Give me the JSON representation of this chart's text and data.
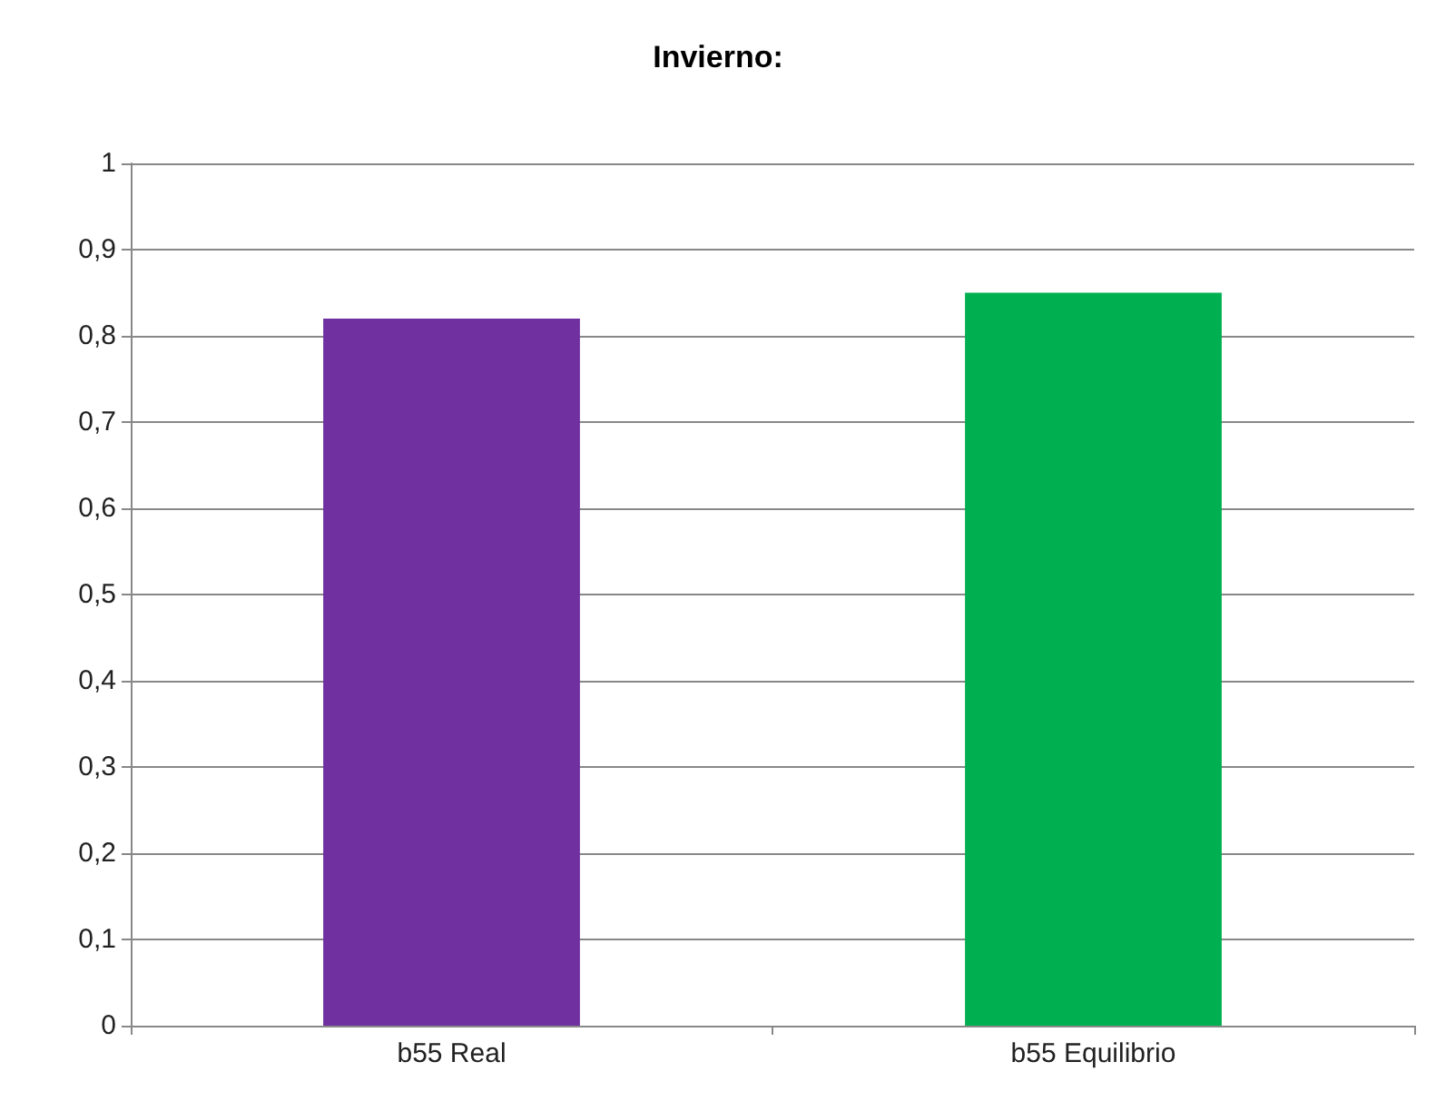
{
  "chart_data": {
    "type": "bar",
    "title": "Invierno:",
    "categories": [
      "b55 Real",
      "b55 Equilibrio"
    ],
    "values": [
      0.82,
      0.85
    ],
    "colors": [
      "#7030a0",
      "#00b050"
    ],
    "ylim": [
      0,
      1
    ],
    "yticks": [
      0,
      {
        "value": 0.1,
        "label": "0,1"
      },
      {
        "value": 0.2,
        "label": "0,2"
      },
      {
        "value": 0.3,
        "label": "0,3"
      },
      {
        "value": 0.4,
        "label": "0,4"
      },
      {
        "value": 0.5,
        "label": "0,5"
      },
      {
        "value": 0.6,
        "label": "0,6"
      },
      {
        "value": 0.7,
        "label": "0,7"
      },
      {
        "value": 0.8,
        "label": "0,8"
      },
      {
        "value": 0.9,
        "label": "0,9"
      },
      1
    ],
    "grid": "y"
  }
}
